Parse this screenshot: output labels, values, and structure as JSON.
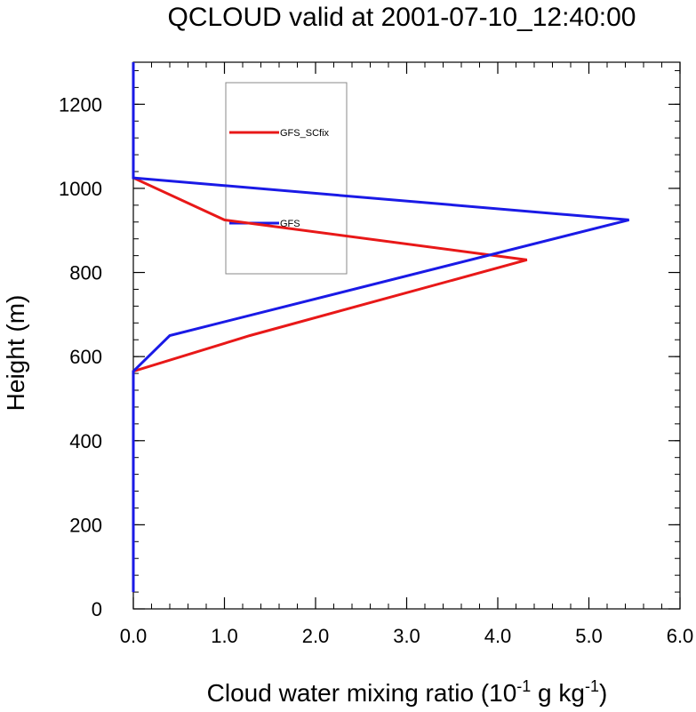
{
  "chart_data": {
    "type": "line",
    "title": "QCLOUD valid at 2001-07-10_12:40:00",
    "xlabel": {
      "prefix": "Cloud water mixing ratio (10",
      "sup1": "-1",
      "middle": " g kg",
      "sup2": "-1",
      "suffix": ")"
    },
    "ylabel": "Height (m)",
    "xlim": [
      0,
      6
    ],
    "ylim": [
      0,
      1300
    ],
    "xticks": [
      0,
      1,
      2,
      3,
      4,
      5,
      6
    ],
    "xtick_labels": [
      "0.0",
      "1.0",
      "2.0",
      "3.0",
      "4.0",
      "5.0",
      "6.0"
    ],
    "yticks": [
      0,
      200,
      400,
      600,
      800,
      1000,
      1200
    ],
    "ytick_labels": [
      "0",
      "200",
      "400",
      "600",
      "800",
      "1000",
      "1200"
    ],
    "grid": false,
    "legend_placement": "top-center",
    "series": [
      {
        "name": "GFS_SCfix",
        "color": "#e81818",
        "points": [
          {
            "x": 0.0,
            "y": 40
          },
          {
            "x": 0.0,
            "y": 565
          },
          {
            "x": 1.28,
            "y": 650
          },
          {
            "x": 4.32,
            "y": 830
          },
          {
            "x": 1.0,
            "y": 925
          },
          {
            "x": 0.0,
            "y": 1025
          },
          {
            "x": 0.0,
            "y": 1300
          }
        ]
      },
      {
        "name": "GFS",
        "color": "#1a1ae6",
        "points": [
          {
            "x": 0.0,
            "y": 40
          },
          {
            "x": 0.0,
            "y": 565
          },
          {
            "x": 0.4,
            "y": 650
          },
          {
            "x": 5.44,
            "y": 925
          },
          {
            "x": 0.0,
            "y": 1025
          },
          {
            "x": 0.0,
            "y": 1300
          }
        ]
      }
    ]
  }
}
